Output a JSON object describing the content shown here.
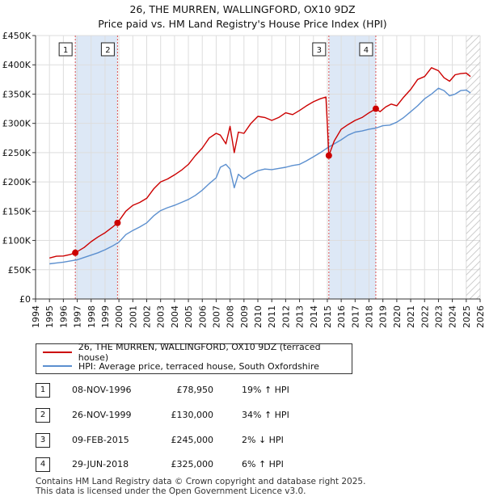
{
  "title": {
    "line1": "26, THE MURREN, WALLINGFORD, OX10 9DZ",
    "line2": "Price paid vs. HM Land Registry's House Price Index (HPI)"
  },
  "colors": {
    "price": "#cc0000",
    "hpi": "#5b8fcf",
    "band": "#dde8f6",
    "vline": "#dd5555"
  },
  "chart_data": {
    "type": "line",
    "xlim": [
      1994,
      2026
    ],
    "ylim": [
      0,
      450000
    ],
    "x_ticks": [
      "1994",
      "1995",
      "1996",
      "1997",
      "1998",
      "1999",
      "2000",
      "2001",
      "2002",
      "2003",
      "2004",
      "2005",
      "2006",
      "2007",
      "2008",
      "2009",
      "2010",
      "2011",
      "2012",
      "2013",
      "2014",
      "2015",
      "2016",
      "2017",
      "2018",
      "2019",
      "2020",
      "2021",
      "2022",
      "2023",
      "2024",
      "2025",
      "2026"
    ],
    "y_ticks": [
      {
        "value": 0,
        "label": "£0"
      },
      {
        "value": 50000,
        "label": "£50K"
      },
      {
        "value": 100000,
        "label": "£100K"
      },
      {
        "value": 150000,
        "label": "£150K"
      },
      {
        "value": 200000,
        "label": "£200K"
      },
      {
        "value": 250000,
        "label": "£250K"
      },
      {
        "value": 300000,
        "label": "£300K"
      },
      {
        "value": 350000,
        "label": "£350K"
      },
      {
        "value": 400000,
        "label": "£400K"
      },
      {
        "value": 450000,
        "label": "£450K"
      }
    ],
    "shaded_periods": [
      [
        1996.86,
        1999.9
      ],
      [
        2015.11,
        2018.49
      ]
    ],
    "hatched_from": 2025.0,
    "sales": [
      {
        "label": "1",
        "x": 1996.86,
        "y": 78950
      },
      {
        "label": "2",
        "x": 1999.9,
        "y": 130000
      },
      {
        "label": "3",
        "x": 2015.11,
        "y": 245000
      },
      {
        "label": "4",
        "x": 2018.49,
        "y": 325000
      }
    ],
    "series": [
      {
        "name": "26, THE MURREN, WALLINGFORD, OX10 9DZ (terraced house)",
        "color": "#cc0000",
        "x": [
          1995.0,
          1995.5,
          1996.0,
          1996.5,
          1996.86,
          1997.5,
          1998.0,
          1998.5,
          1999.0,
          1999.5,
          1999.9,
          2000.5,
          2001.0,
          2001.5,
          2002.0,
          2002.5,
          2003.0,
          2003.5,
          2004.0,
          2004.5,
          2005.0,
          2005.5,
          2006.0,
          2006.5,
          2007.0,
          2007.3,
          2007.7,
          2008.0,
          2008.3,
          2008.6,
          2009.0,
          2009.5,
          2010.0,
          2010.5,
          2011.0,
          2011.5,
          2012.0,
          2012.5,
          2013.0,
          2013.5,
          2014.0,
          2014.5,
          2014.9,
          2015.0,
          2015.11,
          2015.5,
          2016.0,
          2016.5,
          2017.0,
          2017.5,
          2018.0,
          2018.49,
          2018.8,
          2019.2,
          2019.6,
          2020.0,
          2020.5,
          2021.0,
          2021.5,
          2022.0,
          2022.5,
          2023.0,
          2023.4,
          2023.8,
          2024.2,
          2024.6,
          2025.0,
          2025.3
        ],
        "y": [
          70000,
          73000,
          73500,
          76000,
          78950,
          88000,
          98000,
          106000,
          113000,
          122000,
          130000,
          150000,
          160000,
          165000,
          172000,
          188000,
          200000,
          205000,
          212000,
          220000,
          230000,
          245000,
          258000,
          275000,
          283000,
          280000,
          265000,
          295000,
          250000,
          285000,
          283000,
          300000,
          312000,
          310000,
          305000,
          310000,
          318000,
          315000,
          322000,
          330000,
          337000,
          342000,
          345000,
          300000,
          245000,
          270000,
          290000,
          298000,
          305000,
          310000,
          318000,
          325000,
          320000,
          328000,
          333000,
          330000,
          345000,
          358000,
          375000,
          380000,
          395000,
          390000,
          378000,
          372000,
          383000,
          385000,
          386000,
          380000
        ]
      },
      {
        "name": "HPI: Average price, terraced house, South Oxfordshire",
        "color": "#5b8fcf",
        "x": [
          1995.0,
          1995.5,
          1996.0,
          1996.5,
          1997.0,
          1997.5,
          1998.0,
          1998.5,
          1999.0,
          1999.5,
          2000.0,
          2000.5,
          2001.0,
          2001.5,
          2002.0,
          2002.5,
          2003.0,
          2003.5,
          2004.0,
          2004.5,
          2005.0,
          2005.5,
          2006.0,
          2006.5,
          2007.0,
          2007.3,
          2007.7,
          2008.0,
          2008.3,
          2008.6,
          2009.0,
          2009.5,
          2010.0,
          2010.5,
          2011.0,
          2011.5,
          2012.0,
          2012.5,
          2013.0,
          2013.5,
          2014.0,
          2014.5,
          2015.0,
          2015.5,
          2016.0,
          2016.5,
          2017.0,
          2017.5,
          2018.0,
          2018.5,
          2019.0,
          2019.5,
          2020.0,
          2020.5,
          2021.0,
          2021.5,
          2022.0,
          2022.5,
          2023.0,
          2023.4,
          2023.8,
          2024.2,
          2024.6,
          2025.0,
          2025.3
        ],
        "y": [
          60000,
          61500,
          63000,
          65000,
          67000,
          71000,
          75000,
          79000,
          84000,
          90000,
          97000,
          110000,
          117000,
          123000,
          130000,
          142000,
          151000,
          156000,
          160000,
          165000,
          170000,
          177000,
          186000,
          197000,
          207000,
          225000,
          230000,
          222000,
          190000,
          213000,
          205000,
          213000,
          219000,
          222000,
          221000,
          223000,
          225000,
          228000,
          230000,
          236000,
          243000,
          250000,
          258000,
          265000,
          272000,
          280000,
          285000,
          287000,
          290000,
          292000,
          296000,
          297000,
          302000,
          310000,
          320000,
          330000,
          342000,
          350000,
          360000,
          356000,
          347000,
          350000,
          356000,
          357000,
          352000
        ]
      }
    ]
  },
  "legend": {
    "price_label": "26, THE MURREN, WALLINGFORD, OX10 9DZ (terraced house)",
    "hpi_label": "HPI: Average price, terraced house, South Oxfordshire"
  },
  "transactions": [
    {
      "num": "1",
      "date": "08-NOV-1996",
      "price": "£78,950",
      "diff": "19% ↑ HPI"
    },
    {
      "num": "2",
      "date": "26-NOV-1999",
      "price": "£130,000",
      "diff": "34% ↑ HPI"
    },
    {
      "num": "3",
      "date": "09-FEB-2015",
      "price": "£245,000",
      "diff": "2% ↓ HPI"
    },
    {
      "num": "4",
      "date": "29-JUN-2018",
      "price": "£325,000",
      "diff": "6% ↑ HPI"
    }
  ],
  "footer": {
    "line1": "Contains HM Land Registry data © Crown copyright and database right 2025.",
    "line2": "This data is licensed under the Open Government Licence v3.0."
  }
}
